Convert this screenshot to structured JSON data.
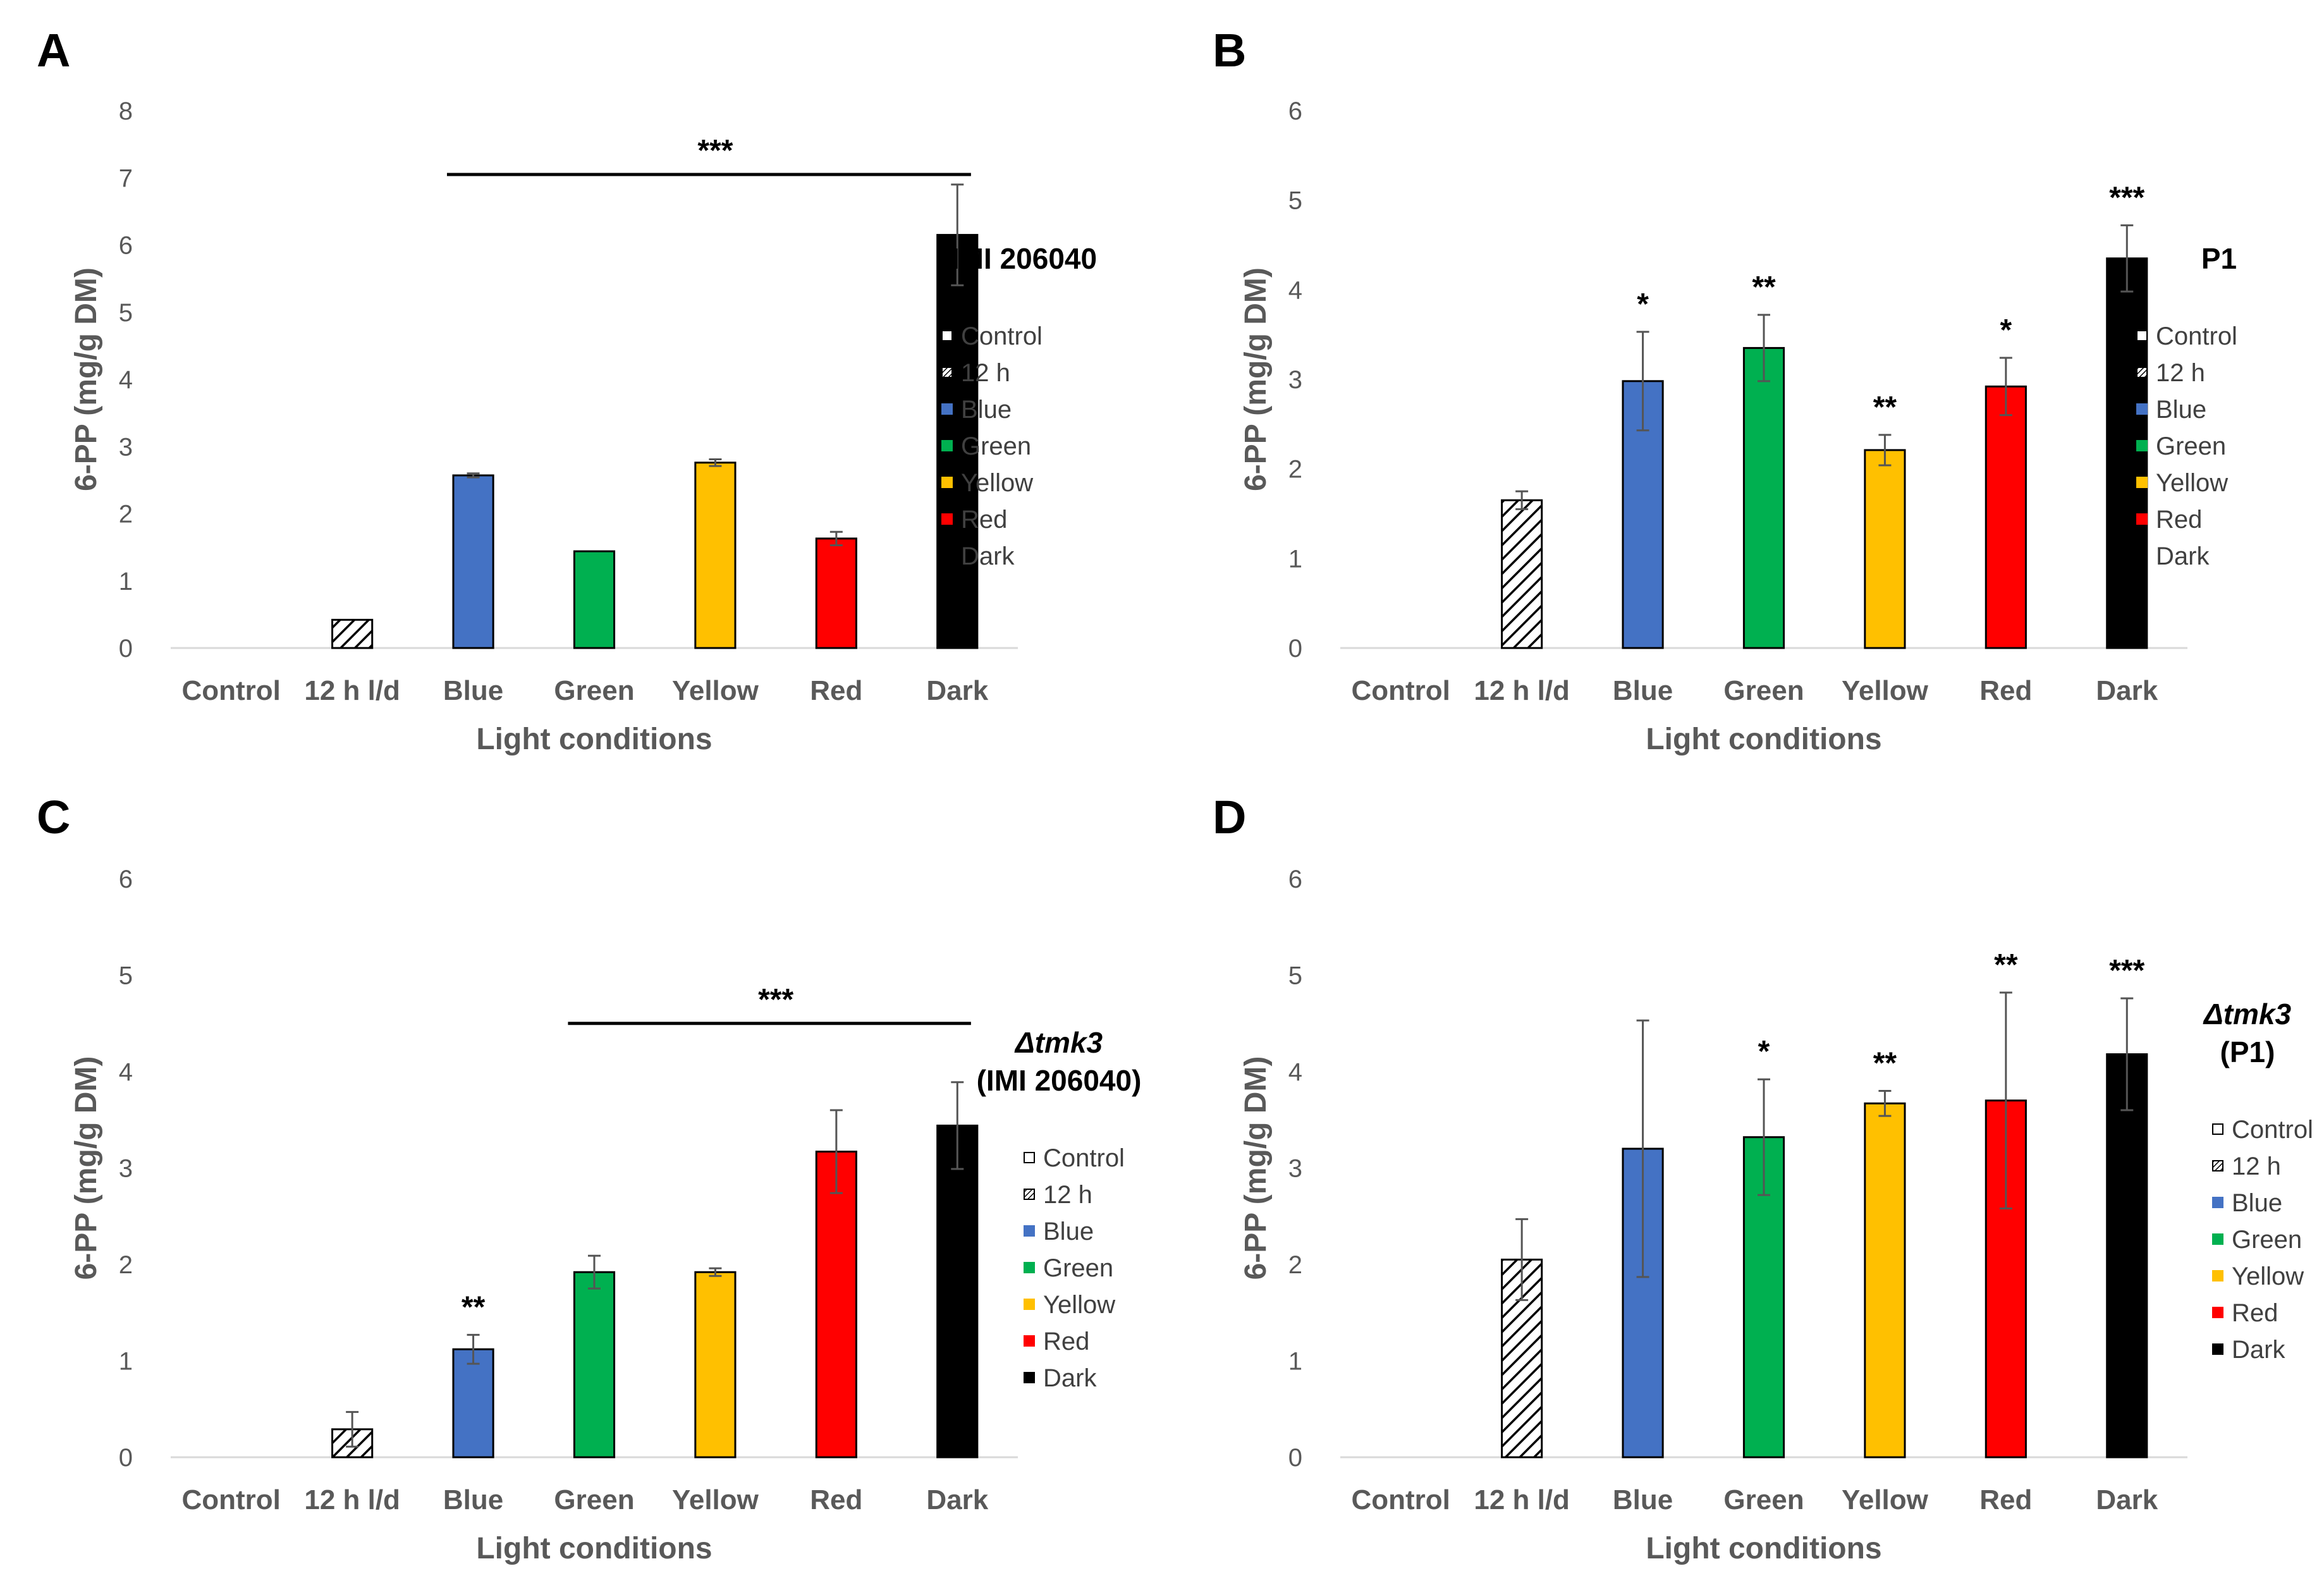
{
  "chart_data": [
    {
      "type": "bar",
      "panel": "A",
      "legend_title": [
        "IMI 206040"
      ],
      "xlabel": "Light conditions",
      "ylabel": "6-PP (mg/g DM)",
      "ylim": [
        0,
        8
      ],
      "yticks": [
        "0",
        "1",
        "2",
        "3",
        "4",
        "5",
        "6",
        "7",
        "8"
      ],
      "categories": [
        "Control",
        "12 h l/d",
        "Blue",
        "Green",
        "Yellow",
        "Red",
        "Dark"
      ],
      "values": [
        0,
        0.42,
        2.57,
        1.44,
        2.76,
        1.63,
        6.15
      ],
      "errors": [
        0,
        0,
        0.03,
        0,
        0.05,
        0.1,
        0.75
      ],
      "bar_colors": [
        "#ffffff",
        "hatch",
        "#4472c4",
        "#00b050",
        "#ffc000",
        "#ff0000",
        "#000000"
      ],
      "legend": [
        "Control",
        "12 h",
        "Blue",
        "Green",
        "Yellow",
        "Red",
        "Dark"
      ],
      "significance": [],
      "bracket": {
        "from": 2,
        "to": 6,
        "y": 7.05,
        "label": "***"
      }
    },
    {
      "type": "bar",
      "panel": "B",
      "legend_title": [
        "P1"
      ],
      "xlabel": "Light conditions",
      "ylabel": "6-PP (mg/g DM)",
      "ylim": [
        0,
        6
      ],
      "yticks": [
        "0",
        "1",
        "2",
        "3",
        "4",
        "5",
        "6"
      ],
      "categories": [
        "Control",
        "12 h l/d",
        "Blue",
        "Green",
        "Yellow",
        "Red",
        "Dark"
      ],
      "values": [
        0,
        1.65,
        2.98,
        3.35,
        2.21,
        2.92,
        4.35
      ],
      "errors": [
        0,
        0.1,
        0.55,
        0.37,
        0.17,
        0.32,
        0.37
      ],
      "bar_colors": [
        "#ffffff",
        "hatch",
        "#4472c4",
        "#00b050",
        "#ffc000",
        "#ff0000",
        "#000000"
      ],
      "legend": [
        "Control",
        "12 h",
        "Blue",
        "Green",
        "Yellow",
        "Red",
        "Dark"
      ],
      "significance": [
        "",
        "",
        "*",
        "**",
        "**",
        "*",
        "***"
      ],
      "bracket": null
    },
    {
      "type": "bar",
      "panel": "C",
      "legend_title": [
        "Δtmk3",
        "(IMI 206040)"
      ],
      "xlabel": "Light conditions",
      "ylabel": "6-PP (mg/g DM)",
      "ylim": [
        0,
        6
      ],
      "yticks": [
        "0",
        "1",
        "2",
        "3",
        "4",
        "5",
        "6"
      ],
      "categories": [
        "Control",
        "12 h l/d",
        "Blue",
        "Green",
        "Yellow",
        "Red",
        "Dark"
      ],
      "values": [
        0,
        0.29,
        1.12,
        1.92,
        1.92,
        3.17,
        3.44
      ],
      "errors": [
        0,
        0.18,
        0.15,
        0.17,
        0.04,
        0.43,
        0.45
      ],
      "bar_colors": [
        "#ffffff",
        "hatch",
        "#4472c4",
        "#00b050",
        "#ffc000",
        "#ff0000",
        "#000000"
      ],
      "legend": [
        "Control",
        "12 h",
        "Blue",
        "Green",
        "Yellow",
        "Red",
        "Dark"
      ],
      "significance": [
        "",
        "",
        "**",
        "",
        "",
        "",
        ""
      ],
      "bracket": {
        "from": 3,
        "to": 6,
        "y": 4.5,
        "label": "***"
      }
    },
    {
      "type": "bar",
      "panel": "D",
      "legend_title": [
        "Δtmk3",
        "(P1)"
      ],
      "xlabel": "Light conditions",
      "ylabel": "6-PP (mg/g DM)",
      "ylim": [
        0,
        6
      ],
      "yticks": [
        "0",
        "1",
        "2",
        "3",
        "4",
        "5",
        "6"
      ],
      "categories": [
        "Control",
        "12 h l/d",
        "Blue",
        "Green",
        "Yellow",
        "Red",
        "Dark"
      ],
      "values": [
        0,
        2.05,
        3.2,
        3.32,
        3.67,
        3.7,
        4.18
      ],
      "errors": [
        0,
        0.42,
        1.33,
        0.6,
        0.13,
        1.12,
        0.58
      ],
      "bar_colors": [
        "#ffffff",
        "hatch",
        "#4472c4",
        "#00b050",
        "#ffc000",
        "#ff0000",
        "#000000"
      ],
      "legend": [
        "Control",
        "12 h",
        "Blue",
        "Green",
        "Yellow",
        "Red",
        "Dark"
      ],
      "significance": [
        "",
        "",
        "",
        "*",
        "**",
        "**",
        "***"
      ],
      "bracket": null
    }
  ]
}
